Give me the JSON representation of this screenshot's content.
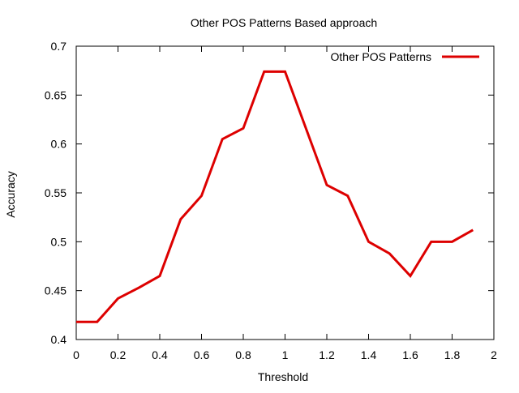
{
  "chart_data": {
    "type": "line",
    "title": "Other POS Patterns Based approach",
    "xlabel": "Threshold",
    "ylabel": "Accuracy",
    "xlim": [
      0,
      2
    ],
    "ylim": [
      0.4,
      0.7
    ],
    "xticks": [
      0,
      0.2,
      0.4,
      0.6,
      0.8,
      1,
      1.2,
      1.4,
      1.6,
      1.8,
      2
    ],
    "xtick_labels": [
      "0",
      "0.2",
      "0.4",
      "0.6",
      "0.8",
      "1",
      "1.2",
      "1.4",
      "1.6",
      "1.8",
      "2"
    ],
    "yticks": [
      0.4,
      0.45,
      0.5,
      0.55,
      0.6,
      0.65,
      0.7
    ],
    "ytick_labels": [
      "0.4",
      "0.45",
      "0.5",
      "0.55",
      "0.6",
      "0.65",
      "0.7"
    ],
    "grid": false,
    "legend_position": "top-right",
    "series": [
      {
        "name": "Other POS Patterns",
        "color": "#dd0000",
        "x": [
          0,
          0.1,
          0.2,
          0.3,
          0.4,
          0.5,
          0.6,
          0.7,
          0.8,
          0.9,
          1.0,
          1.1,
          1.2,
          1.3,
          1.4,
          1.5,
          1.6,
          1.7,
          1.8,
          1.9
        ],
        "y": [
          0.418,
          0.418,
          0.442,
          0.453,
          0.465,
          0.523,
          0.547,
          0.605,
          0.616,
          0.674,
          0.674,
          0.616,
          0.558,
          0.547,
          0.5,
          0.488,
          0.465,
          0.5,
          0.5,
          0.512
        ]
      }
    ]
  }
}
